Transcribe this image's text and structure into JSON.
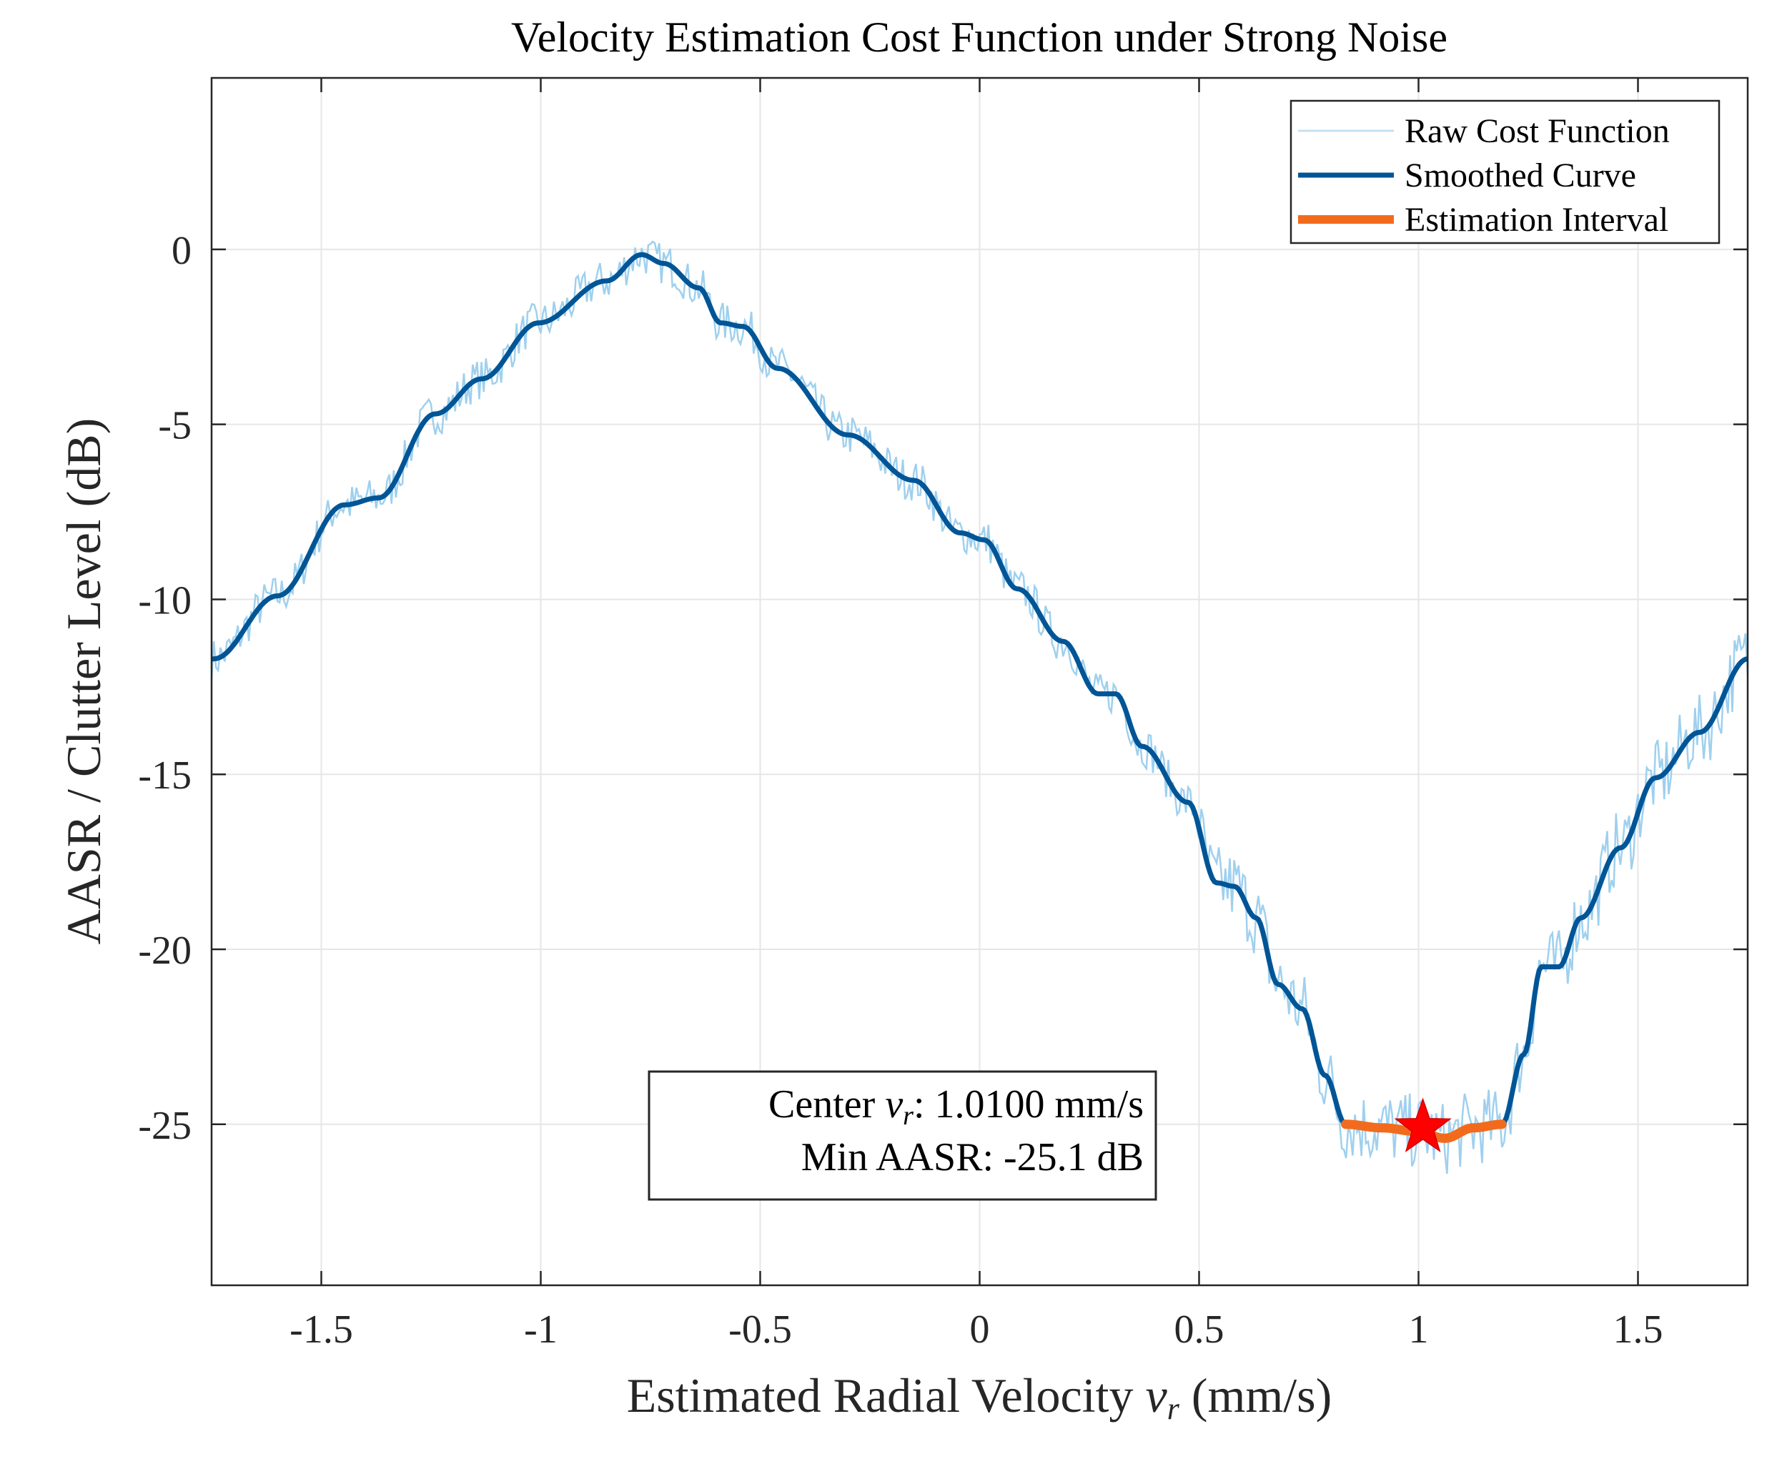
{
  "chart_data": {
    "type": "line",
    "title": "Velocity Estimation Cost Function under Strong Noise",
    "xlabel": {
      "prefix": "Estimated Radial Velocity ",
      "var": "v",
      "sub": "r",
      "suffix": " (mm/s)"
    },
    "ylabel": "AASR / Clutter Level (dB)",
    "xlim": [
      -1.75,
      1.75
    ],
    "ylim": [
      -29.6,
      4.9
    ],
    "xticks": [
      -1.5,
      -1,
      -0.5,
      0,
      0.5,
      1,
      1.5
    ],
    "xtick_labels": [
      "-1.5",
      "-1",
      "-0.5",
      "0",
      "0.5",
      "1",
      "1.5"
    ],
    "yticks": [
      0,
      -5,
      -10,
      -15,
      -20,
      -25
    ],
    "ytick_labels": [
      "0",
      "-5",
      "-10",
      "-15",
      "-20",
      "-25"
    ],
    "grid": true,
    "legend": {
      "placement": "top-right",
      "entries": [
        "Raw Cost Function",
        "Smoothed Curve",
        "Estimation Interval"
      ]
    },
    "series": [
      {
        "name": "Smoothed Curve",
        "color": "#005596",
        "x": [
          -1.745,
          -1.6,
          -1.447,
          -1.37,
          -1.24,
          -1.135,
          -1.005,
          -0.85,
          -0.77,
          -0.72,
          -0.64,
          -0.59,
          -0.54,
          -0.46,
          -0.3,
          -0.15,
          -0.044,
          0.01,
          0.086,
          0.19,
          0.27,
          0.31,
          0.37,
          0.475,
          0.54,
          0.58,
          0.63,
          0.68,
          0.735,
          0.787,
          0.834,
          0.917,
          0.995,
          1.06,
          1.125,
          1.19,
          1.24,
          1.28,
          1.32,
          1.37,
          1.46,
          1.54,
          1.64,
          1.75
        ],
        "y": [
          -11.7,
          -9.9,
          -7.3,
          -7.1,
          -4.7,
          -3.7,
          -2.1,
          -0.9,
          -0.15,
          -0.4,
          -1.1,
          -2.1,
          -2.2,
          -3.4,
          -5.3,
          -6.6,
          -8.1,
          -8.3,
          -9.7,
          -11.2,
          -12.7,
          -12.7,
          -14.2,
          -15.8,
          -18.1,
          -18.2,
          -19.1,
          -21.0,
          -21.7,
          -23.6,
          -25.0,
          -25.1,
          -25.2,
          -25.4,
          -25.1,
          -25.0,
          -23.0,
          -20.5,
          -20.5,
          -19.1,
          -17.1,
          -15.1,
          -13.8,
          -11.7
        ]
      },
      {
        "name": "Raw Cost Function",
        "color": "#9fd0ee",
        "noise_db": 0.6
      },
      {
        "name": "Estimation Interval",
        "color": "#f26b1d",
        "x_range": [
          0.834,
          1.19
        ]
      }
    ],
    "marker": {
      "type": "star",
      "x": 1.01,
      "y": -25.1,
      "color": "#ff0000"
    },
    "annotation": {
      "center_label": "Center ",
      "var": "v",
      "sub": "r",
      "center_value": ": 1.0100 mm/s",
      "min_label": "Min AASR: -25.1 dB"
    }
  }
}
